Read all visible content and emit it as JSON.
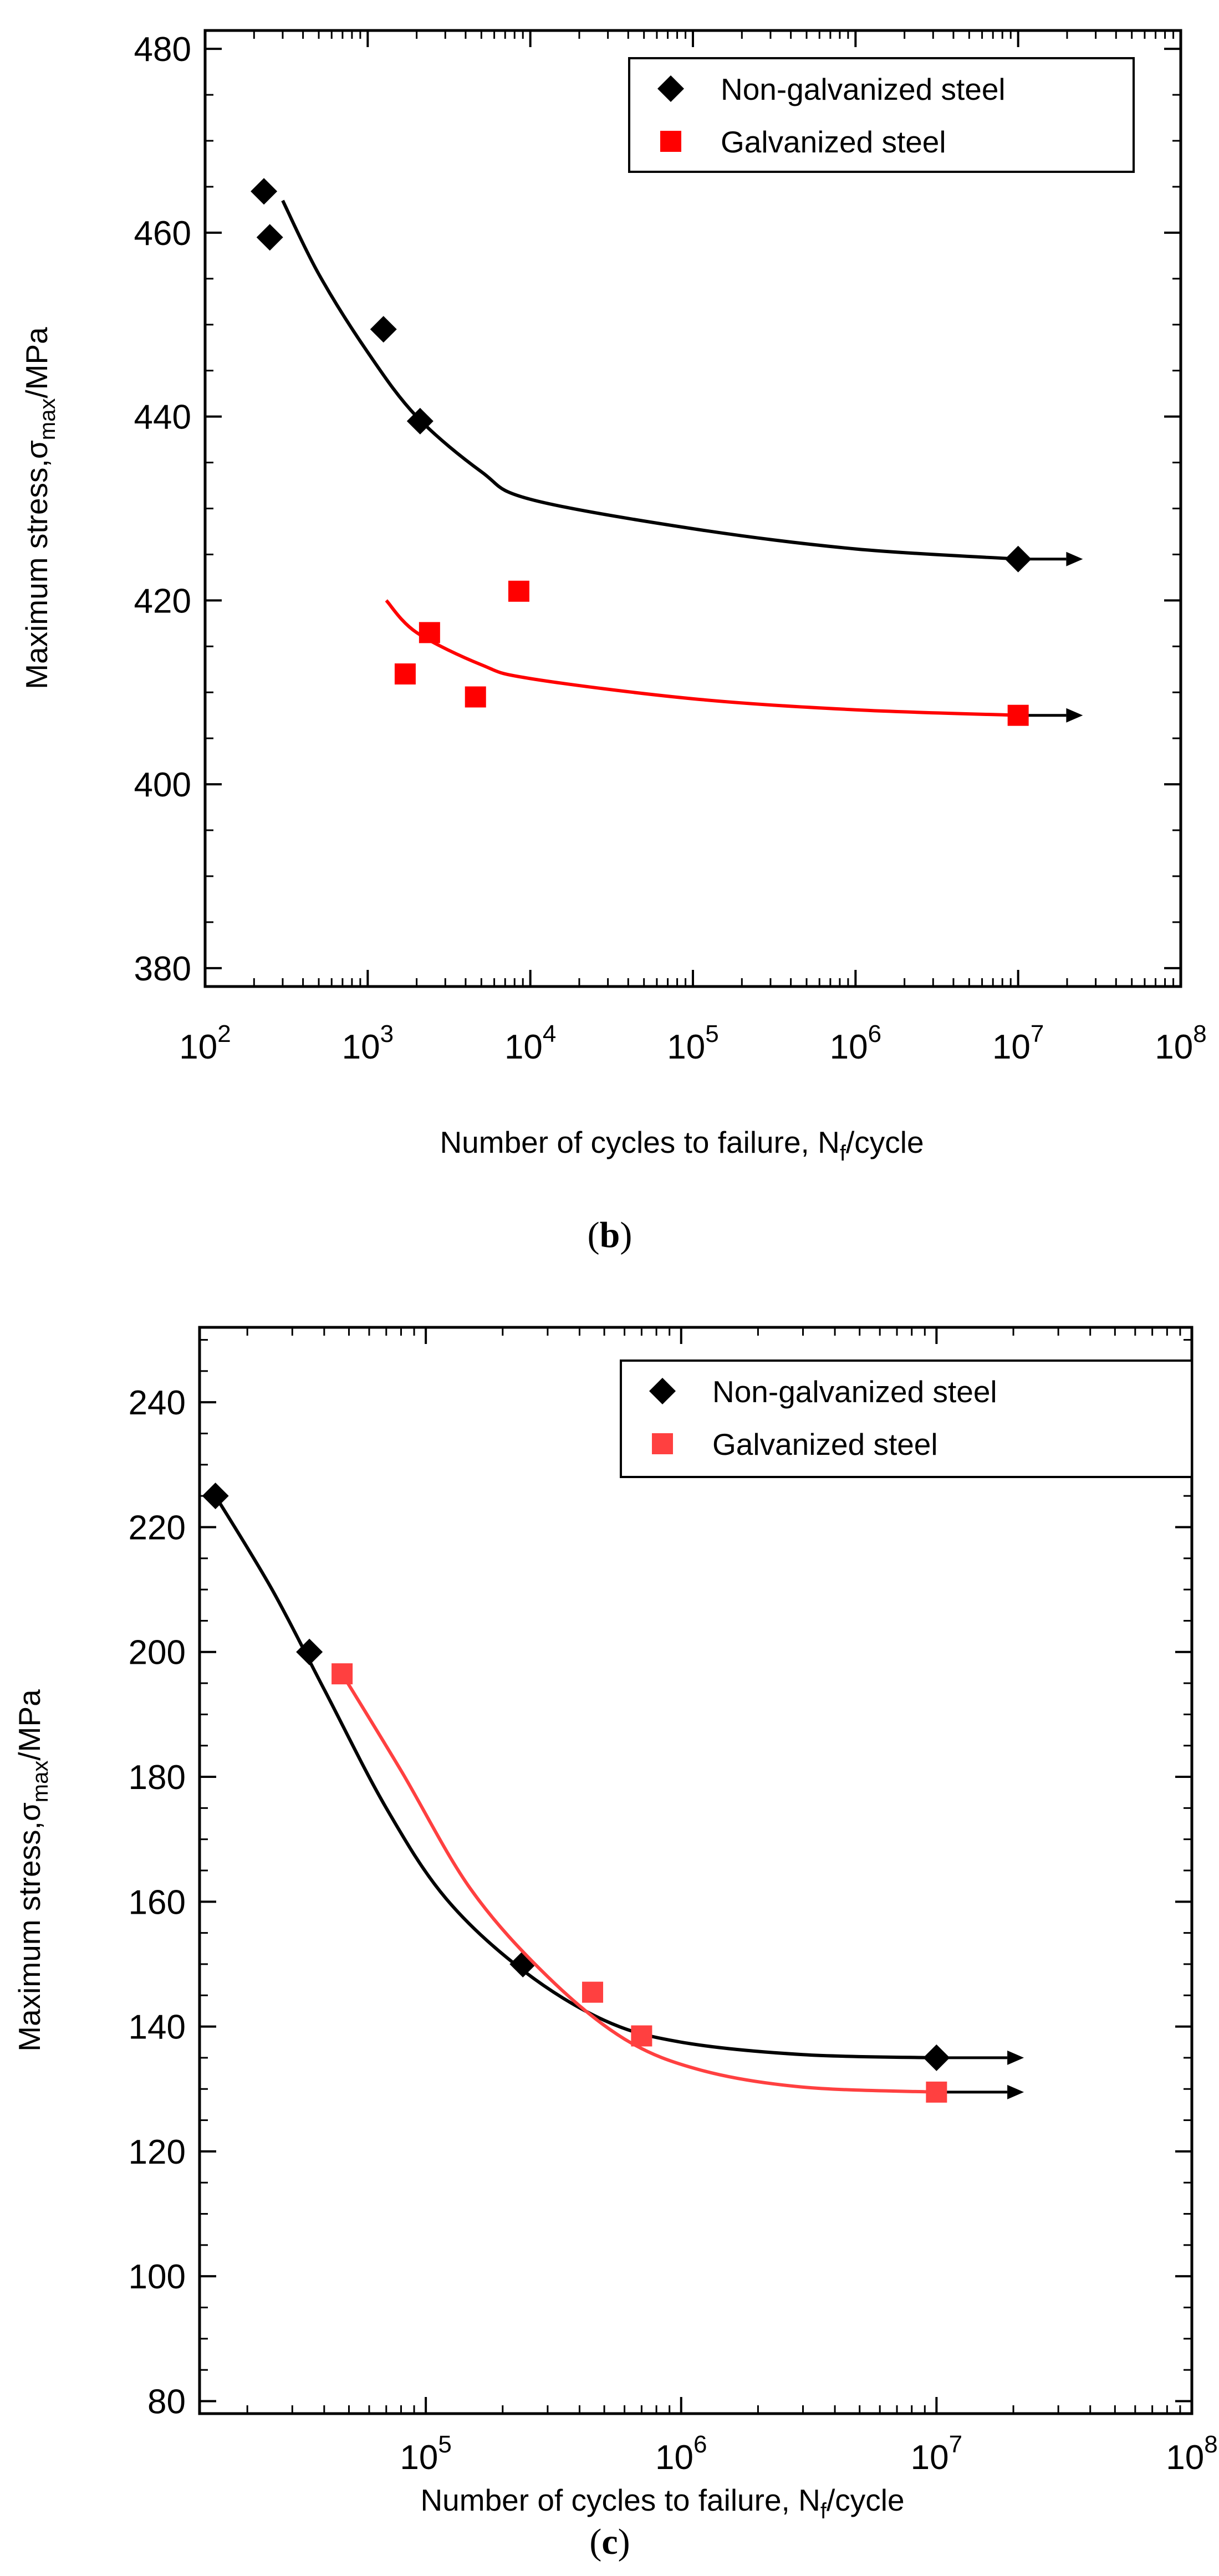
{
  "chart_data": [
    {
      "type": "scatter",
      "panel_label": "b",
      "caption_open": "(",
      "caption_close": ")",
      "xlabel_main": "Number of cycles to failure, N",
      "xlabel_sub": "f",
      "xlabel_end": "/cycle",
      "ylabel_main": "Maximum stress,σ",
      "ylabel_sub": "max",
      "ylabel_end": "/MPa",
      "xscale": "log",
      "xlim": [
        100,
        100000000
      ],
      "ylim": [
        378,
        482
      ],
      "x_ticks": [
        {
          "exp": "2",
          "value": 100
        },
        {
          "exp": "3",
          "value": 1000
        },
        {
          "exp": "4",
          "value": 10000
        },
        {
          "exp": "5",
          "value": 100000
        },
        {
          "exp": "6",
          "value": 1000000
        },
        {
          "exp": "7",
          "value": 10000000
        },
        {
          "exp": "8",
          "value": 100000000
        }
      ],
      "x_tick_base": "10",
      "y_ticks": [
        "380",
        "400",
        "420",
        "440",
        "460",
        "480"
      ],
      "legend_position": "top-right",
      "series": [
        {
          "name": "Non-galvanized steel",
          "marker": "diamond",
          "color": "#000000",
          "points": [
            [
              230,
              464.5
            ],
            [
              250,
              459.5
            ],
            [
              1250,
              449.5
            ],
            [
              2100,
              439.5
            ],
            [
              10000000,
              424.5
            ]
          ],
          "fit_curve": [
            [
              300,
              463.5
            ],
            [
              500,
              455.5
            ],
            [
              1000,
              447.0
            ],
            [
              2000,
              440.0
            ],
            [
              5000,
              434.0
            ],
            [
              10000,
              431.0
            ],
            [
              100000,
              427.8
            ],
            [
              1000000,
              425.6
            ],
            [
              10000000,
              424.5
            ]
          ],
          "runout_arrow": {
            "from": 10000000,
            "to": 25000000,
            "y": 424.5
          }
        },
        {
          "name": "Galvanized steel",
          "marker": "square",
          "color": "#ff0000",
          "points": [
            [
              1700,
              412.0
            ],
            [
              2400,
              416.5
            ],
            [
              4600,
              409.5
            ],
            [
              8500,
              421.0
            ],
            [
              10000000,
              407.5
            ]
          ],
          "fit_curve": [
            [
              1300,
              420.0
            ],
            [
              2000,
              416.5
            ],
            [
              5000,
              413.0
            ],
            [
              10000,
              411.5
            ],
            [
              100000,
              409.3
            ],
            [
              1000000,
              408.1
            ],
            [
              10000000,
              407.5
            ]
          ],
          "runout_arrow": {
            "from": 10000000,
            "to": 25000000,
            "y": 407.5
          }
        }
      ]
    },
    {
      "type": "scatter",
      "panel_label": "c",
      "caption_open": "(",
      "caption_close": ")",
      "xlabel_main": "Number of cycles to failure, N",
      "xlabel_sub": "f",
      "xlabel_end": "/cycle",
      "ylabel_main": "Maximum stress,σ",
      "ylabel_sub": "max",
      "ylabel_end": "/MPa",
      "xscale": "log",
      "xlim": [
        13000,
        100000000
      ],
      "ylim": [
        78,
        252
      ],
      "x_ticks": [
        {
          "exp": "5",
          "value": 100000
        },
        {
          "exp": "6",
          "value": 1000000
        },
        {
          "exp": "7",
          "value": 10000000
        },
        {
          "exp": "8",
          "value": 100000000
        }
      ],
      "x_tick_base": "10",
      "y_ticks": [
        "80",
        "100",
        "120",
        "140",
        "160",
        "180",
        "200",
        "220",
        "240"
      ],
      "legend_position": "top-right",
      "series": [
        {
          "name": "Non-galvanized steel",
          "marker": "diamond",
          "color": "#000000",
          "points": [
            [
              15000,
              225.0
            ],
            [
              35000,
              200.0
            ],
            [
              240000,
              150.0
            ],
            [
              10000000,
              135.0
            ]
          ],
          "fit_curve": [
            [
              15000,
              225.0
            ],
            [
              25000,
              210.0
            ],
            [
              40000,
              194.0
            ],
            [
              70000,
              175.0
            ],
            [
              120000,
              160.5
            ],
            [
              240000,
              149.0
            ],
            [
              500000,
              141.0
            ],
            [
              1000000,
              137.5
            ],
            [
              3000000,
              135.5
            ],
            [
              10000000,
              135.0
            ]
          ],
          "runout_arrow": {
            "from": 10000000,
            "to": 22000000,
            "y": 135.0
          }
        },
        {
          "name": "Galvanized steel",
          "marker": "square",
          "color": "#ff4040",
          "points": [
            [
              47000,
              196.5
            ],
            [
              450000,
              145.5
            ],
            [
              700000,
              138.5
            ],
            [
              10000000,
              129.5
            ]
          ],
          "fit_curve": [
            [
              47000,
              196.5
            ],
            [
              80000,
              181.0
            ],
            [
              150000,
              162.0
            ],
            [
              300000,
              148.0
            ],
            [
              600000,
              138.0
            ],
            [
              1200000,
              133.0
            ],
            [
              3000000,
              130.3
            ],
            [
              10000000,
              129.5
            ]
          ],
          "runout_arrow": {
            "from": 10000000,
            "to": 22000000,
            "y": 129.5
          }
        }
      ]
    }
  ]
}
